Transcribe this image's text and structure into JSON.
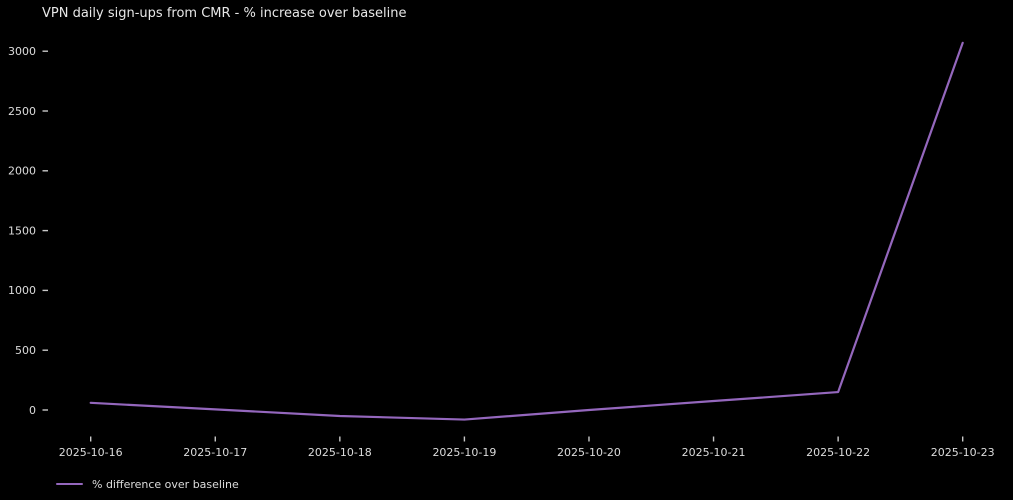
{
  "colors": {
    "background": "#000000",
    "title_text": "#e8e8e8",
    "tick_text": "#dcdcdc",
    "tick_mark": "#c9c9c9",
    "series": "#9467bd"
  },
  "chart_data": {
    "type": "line",
    "title": "VPN daily sign-ups from CMR - % increase over baseline",
    "categories": [
      "2025-10-16",
      "2025-10-17",
      "2025-10-18",
      "2025-10-19",
      "2025-10-20",
      "2025-10-21",
      "2025-10-22",
      "2025-10-23"
    ],
    "series": [
      {
        "name": "% difference over baseline",
        "color": "#9467bd",
        "values": [
          60,
          5,
          -50,
          -80,
          0,
          75,
          150,
          3070
        ]
      }
    ],
    "xlabel": "",
    "ylabel": "",
    "yticks": [
      0,
      500,
      1000,
      1500,
      2000,
      2500,
      3000
    ],
    "ylim": [
      -240,
      3230
    ],
    "grid": false,
    "axis_spines": false,
    "markers": false,
    "legend_position": "lower-left-below-axes",
    "background": "#000000"
  }
}
